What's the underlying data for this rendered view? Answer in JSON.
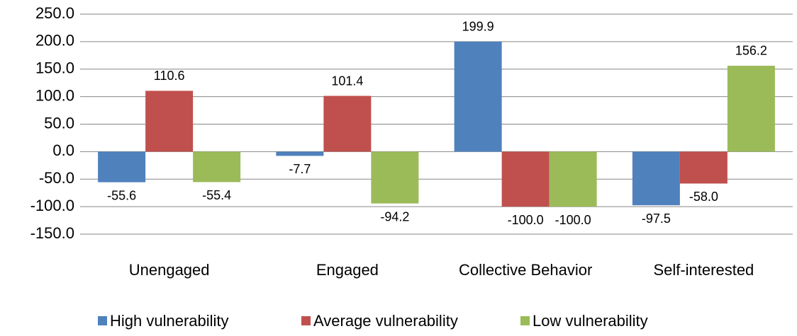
{
  "chart_data": {
    "type": "bar",
    "categories": [
      "Unengaged",
      "Engaged",
      "Collective Behavior",
      "Self-interested"
    ],
    "series": [
      {
        "name": "High vulnerability",
        "color": "#4f81bd",
        "values": [
          -55.6,
          -7.7,
          199.9,
          -97.5
        ],
        "value_labels": [
          "-55.6",
          "-7.7",
          "199.9",
          "-97.5"
        ]
      },
      {
        "name": "Average vulnerability",
        "color": "#c0504d",
        "values": [
          110.6,
          101.4,
          -100.0,
          -58.0
        ],
        "value_labels": [
          "110.6",
          "101.4",
          "-100.0",
          "-58.0"
        ]
      },
      {
        "name": "Low vulnerability",
        "color": "#9bbb59",
        "values": [
          -55.4,
          -94.2,
          -100.0,
          156.2
        ],
        "value_labels": [
          "-55.4",
          "-94.2",
          "-100.0",
          "156.2"
        ]
      }
    ],
    "ylim": [
      -150,
      250
    ],
    "yticks": [
      {
        "value": -150,
        "label": "-150.0"
      },
      {
        "value": -100,
        "label": "-100.0"
      },
      {
        "value": -50,
        "label": "-50.0"
      },
      {
        "value": 0,
        "label": "0.0"
      },
      {
        "value": 50,
        "label": "50.0"
      },
      {
        "value": 100,
        "label": "100.0"
      },
      {
        "value": 150,
        "label": "150.0"
      },
      {
        "value": 200,
        "label": "200.0"
      },
      {
        "value": 250,
        "label": "250.0"
      }
    ],
    "grid": true,
    "legend": "bottom"
  }
}
